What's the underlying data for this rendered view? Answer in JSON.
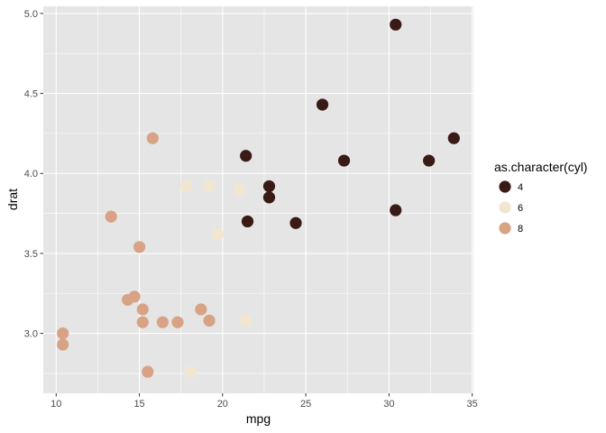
{
  "chart_data": {
    "type": "scatter",
    "title": "",
    "xlabel": "mpg",
    "ylabel": "drat",
    "xlim": [
      9.225,
      35.075
    ],
    "ylim": [
      2.6255,
      5.0445
    ],
    "x_ticks": [
      10,
      15,
      20,
      25,
      30,
      35
    ],
    "x_tick_labels": [
      "10",
      "15",
      "20",
      "25",
      "30",
      "35"
    ],
    "y_ticks": [
      3.0,
      3.5,
      4.0,
      4.5,
      5.0
    ],
    "y_tick_labels": [
      "3.0",
      "3.5",
      "4.0",
      "4.5",
      "5.0"
    ],
    "grid": true,
    "panel_background": "#e5e5e5",
    "grid_color": "#ffffff",
    "legend": {
      "title": "as.character(cyl)",
      "position": "right",
      "entries": [
        {
          "label": "4",
          "color": "#3a1a14"
        },
        {
          "label": "6",
          "color": "#f2e6d0"
        },
        {
          "label": "8",
          "color": "#d8a285"
        }
      ]
    },
    "series": [
      {
        "name": "4",
        "color": "#3a1a14",
        "points": [
          [
            22.8,
            3.85
          ],
          [
            24.4,
            3.69
          ],
          [
            22.8,
            3.92
          ],
          [
            32.4,
            4.08
          ],
          [
            30.4,
            4.93
          ],
          [
            33.9,
            4.22
          ],
          [
            21.5,
            3.7
          ],
          [
            27.3,
            4.08
          ],
          [
            26.0,
            4.43
          ],
          [
            30.4,
            3.77
          ],
          [
            21.4,
            4.11
          ]
        ]
      },
      {
        "name": "6",
        "color": "#f2e6d0",
        "points": [
          [
            21.0,
            3.9
          ],
          [
            21.0,
            3.9
          ],
          [
            21.4,
            3.08
          ],
          [
            18.1,
            2.76
          ],
          [
            19.2,
            3.92
          ],
          [
            17.8,
            3.92
          ],
          [
            19.7,
            3.62
          ]
        ]
      },
      {
        "name": "8",
        "color": "#d8a285",
        "points": [
          [
            18.7,
            3.15
          ],
          [
            14.3,
            3.21
          ],
          [
            16.4,
            3.07
          ],
          [
            17.3,
            3.07
          ],
          [
            15.2,
            3.07
          ],
          [
            10.4,
            2.93
          ],
          [
            10.4,
            3.0
          ],
          [
            14.7,
            3.23
          ],
          [
            15.5,
            2.76
          ],
          [
            15.2,
            3.15
          ],
          [
            13.3,
            3.73
          ],
          [
            19.2,
            3.08
          ],
          [
            15.8,
            4.22
          ],
          [
            15.0,
            3.54
          ]
        ]
      }
    ]
  }
}
